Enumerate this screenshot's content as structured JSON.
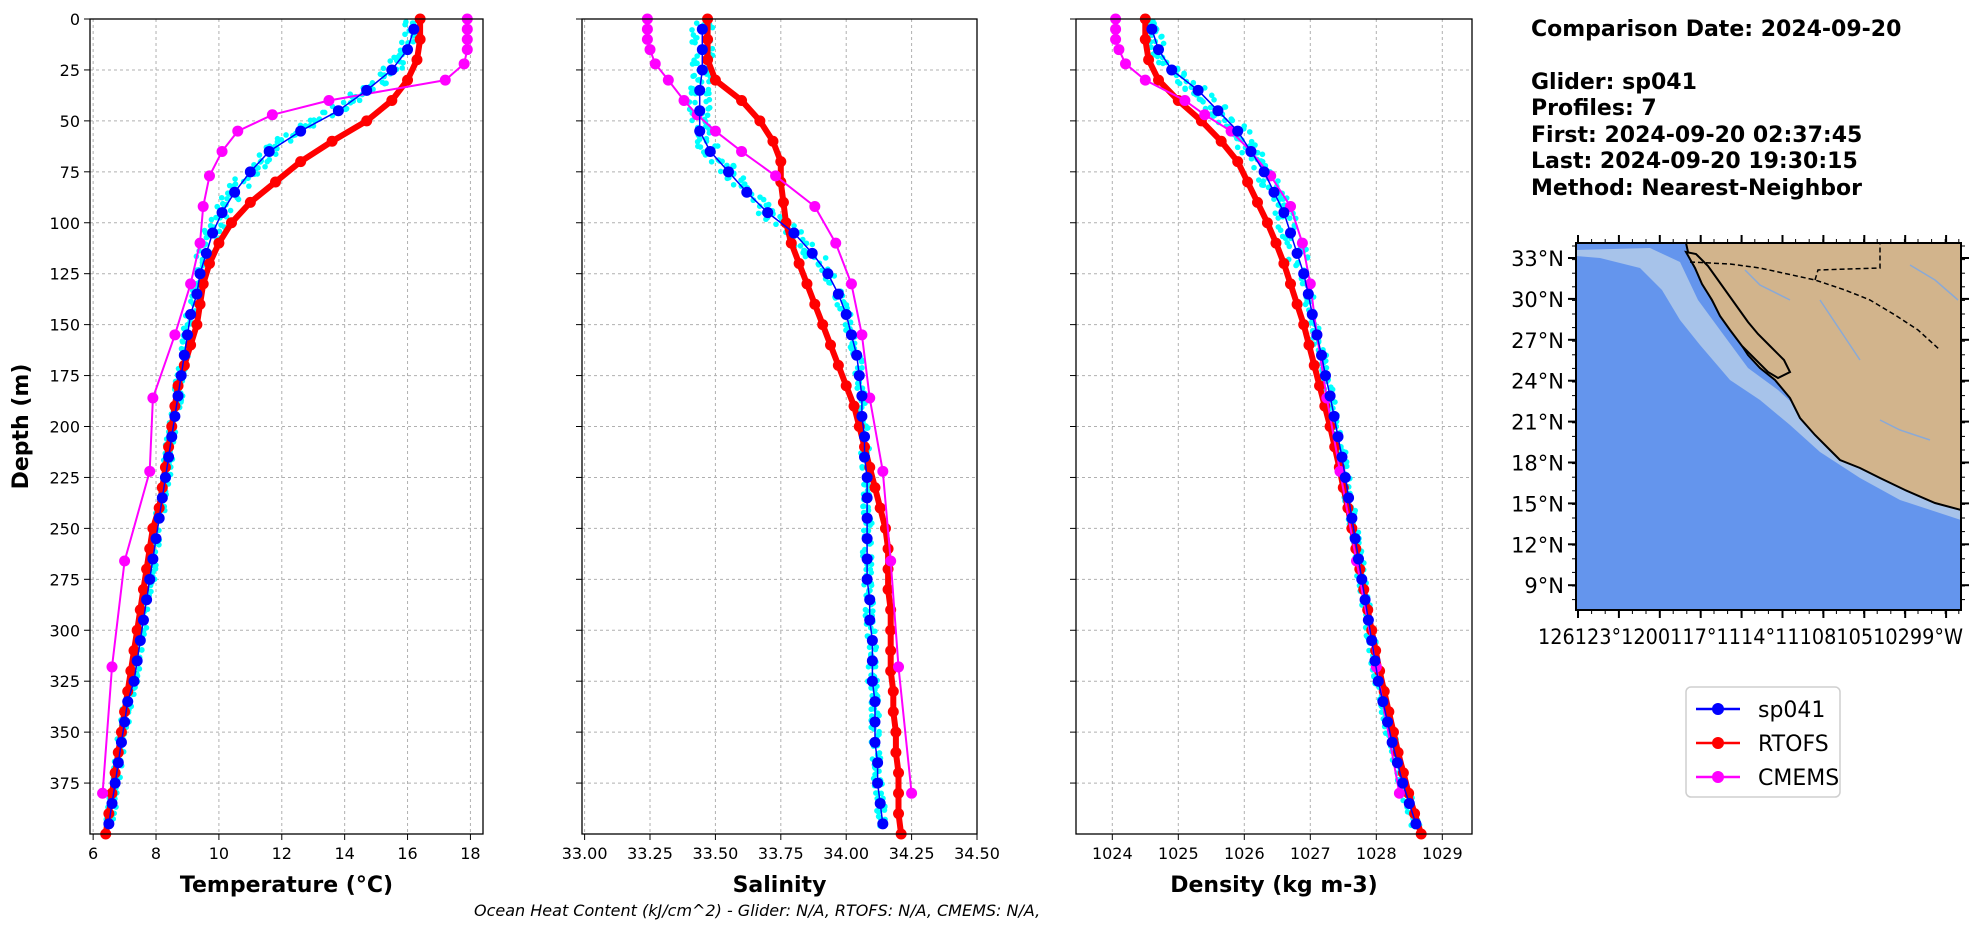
{
  "info": {
    "comparison_date": "Comparison Date: 2024-09-20",
    "glider": "Glider: sp041",
    "profiles": "Profiles: 7",
    "first": "First: 2024-09-20 02:37:45",
    "last": "Last: 2024-09-20 19:30:15",
    "method": "Method: Nearest-Neighbor"
  },
  "footer": "Ocean Heat Content (kJ/cm^2) - Glider: N/A,  RTOFS: N/A,  CMEMS: N/A,",
  "colors": {
    "sp041": "#0000ff",
    "rtofs": "#ff0000",
    "cmems": "#ff00ff",
    "raw": "#00ffff",
    "ocean": "#6495ed",
    "shelf": "#a7c3ea",
    "land": "#d2b48c"
  },
  "legend": [
    {
      "label": "sp041",
      "color": "#0000ff"
    },
    {
      "label": "RTOFS",
      "color": "#ff0000"
    },
    {
      "label": "CMEMS",
      "color": "#ff00ff"
    }
  ],
  "map": {
    "lat_labels": [
      "33°N",
      "30°N",
      "27°N",
      "24°N",
      "21°N",
      "18°N",
      "15°N",
      "12°N",
      "9°N"
    ],
    "lon_labels": [
      "126°W",
      "123°W",
      "120°W",
      "117°W",
      "114°W",
      "111°W",
      "108°W",
      "105°W",
      "102°W",
      "99°W"
    ],
    "lon_label_text": "126123°1200117°1114°1110810510299°W",
    "ocean_color": "#6495ed",
    "land_color": "#d2b48c"
  },
  "chart_data": [
    {
      "type": "line",
      "xlabel": "Temperature (°C)",
      "ylabel": "Depth (m)",
      "xlim": [
        5.9,
        18.4
      ],
      "ylim": [
        400,
        0
      ],
      "xticks": [
        6,
        8,
        10,
        12,
        14,
        16,
        18
      ],
      "yticks": [
        0,
        25,
        50,
        75,
        100,
        125,
        150,
        175,
        200,
        225,
        250,
        275,
        300,
        325,
        350,
        375
      ],
      "grid": true,
      "series": [
        {
          "name": "sp041",
          "depth": [
            5,
            15,
            25,
            35,
            45,
            55,
            65,
            75,
            85,
            95,
            105,
            115,
            125,
            135,
            145,
            155,
            165,
            175,
            185,
            195,
            205,
            215,
            225,
            235,
            245,
            255,
            265,
            275,
            285,
            295,
            305,
            315,
            325,
            335,
            345,
            355,
            365,
            375,
            385,
            395
          ],
          "values": [
            16.2,
            16.0,
            15.5,
            14.7,
            13.8,
            12.6,
            11.6,
            11.0,
            10.5,
            10.1,
            9.8,
            9.6,
            9.4,
            9.3,
            9.1,
            9.0,
            8.9,
            8.8,
            8.7,
            8.6,
            8.5,
            8.4,
            8.3,
            8.2,
            8.1,
            8.0,
            7.9,
            7.8,
            7.7,
            7.6,
            7.5,
            7.4,
            7.3,
            7.1,
            7.0,
            6.9,
            6.8,
            6.7,
            6.6,
            6.5
          ]
        },
        {
          "name": "RTOFS",
          "depth": [
            0,
            10,
            20,
            30,
            40,
            50,
            60,
            70,
            80,
            90,
            100,
            110,
            120,
            130,
            140,
            150,
            160,
            170,
            180,
            190,
            200,
            210,
            220,
            230,
            240,
            250,
            260,
            270,
            280,
            290,
            300,
            310,
            320,
            330,
            340,
            350,
            360,
            370,
            380,
            390,
            400
          ],
          "values": [
            16.4,
            16.4,
            16.3,
            16.0,
            15.5,
            14.7,
            13.6,
            12.6,
            11.8,
            11.0,
            10.4,
            10.0,
            9.7,
            9.5,
            9.4,
            9.3,
            9.1,
            8.9,
            8.7,
            8.6,
            8.5,
            8.4,
            8.3,
            8.2,
            8.1,
            7.9,
            7.8,
            7.7,
            7.6,
            7.5,
            7.4,
            7.3,
            7.2,
            7.1,
            7.0,
            6.9,
            6.8,
            6.7,
            6.6,
            6.5,
            6.4
          ]
        },
        {
          "name": "CMEMS",
          "depth": [
            0,
            5,
            10,
            15,
            22,
            30,
            40,
            47,
            55,
            65,
            77,
            92,
            110,
            130,
            155,
            186,
            222,
            266,
            318,
            380
          ],
          "values": [
            17.9,
            17.9,
            17.9,
            17.9,
            17.8,
            17.2,
            13.5,
            11.7,
            10.6,
            10.1,
            9.7,
            9.5,
            9.4,
            9.1,
            8.6,
            7.9,
            7.8,
            7.0,
            6.6,
            6.3
          ]
        }
      ]
    },
    {
      "type": "line",
      "xlabel": "Salinity",
      "xlim": [
        32.99,
        34.5
      ],
      "ylim": [
        400,
        0
      ],
      "xticks": [
        33.0,
        33.25,
        33.5,
        33.75,
        34.0,
        34.25,
        34.5
      ],
      "grid": true,
      "series": [
        {
          "name": "sp041",
          "depth": [
            5,
            15,
            25,
            35,
            45,
            55,
            65,
            75,
            85,
            95,
            105,
            115,
            125,
            135,
            145,
            155,
            165,
            175,
            185,
            195,
            205,
            215,
            225,
            235,
            245,
            255,
            265,
            275,
            285,
            295,
            305,
            315,
            325,
            335,
            345,
            355,
            365,
            375,
            385,
            395
          ],
          "values": [
            33.45,
            33.45,
            33.45,
            33.44,
            33.44,
            33.44,
            33.48,
            33.55,
            33.62,
            33.7,
            33.8,
            33.87,
            33.93,
            33.97,
            34.0,
            34.02,
            34.04,
            34.05,
            34.06,
            34.06,
            34.07,
            34.07,
            34.08,
            34.08,
            34.08,
            34.08,
            34.08,
            34.08,
            34.09,
            34.09,
            34.1,
            34.1,
            34.1,
            34.11,
            34.11,
            34.11,
            34.12,
            34.12,
            34.13,
            34.14
          ]
        },
        {
          "name": "RTOFS",
          "depth": [
            0,
            10,
            20,
            30,
            40,
            50,
            60,
            70,
            80,
            90,
            100,
            110,
            120,
            130,
            140,
            150,
            160,
            170,
            180,
            190,
            200,
            210,
            220,
            230,
            240,
            250,
            260,
            270,
            280,
            290,
            300,
            310,
            320,
            330,
            340,
            350,
            360,
            370,
            380,
            390,
            400
          ],
          "values": [
            33.47,
            33.47,
            33.47,
            33.5,
            33.6,
            33.67,
            33.72,
            33.75,
            33.75,
            33.76,
            33.77,
            33.79,
            33.82,
            33.85,
            33.88,
            33.91,
            33.94,
            33.97,
            34.0,
            34.03,
            34.05,
            34.07,
            34.09,
            34.11,
            34.13,
            34.15,
            34.16,
            34.16,
            34.16,
            34.17,
            34.17,
            34.17,
            34.17,
            34.18,
            34.18,
            34.19,
            34.19,
            34.2,
            34.2,
            34.2,
            34.21
          ]
        },
        {
          "name": "CMEMS",
          "depth": [
            0,
            5,
            10,
            15,
            22,
            30,
            40,
            47,
            55,
            65,
            77,
            92,
            110,
            130,
            155,
            186,
            222,
            266,
            318,
            380
          ],
          "values": [
            33.24,
            33.24,
            33.24,
            33.25,
            33.27,
            33.32,
            33.38,
            33.43,
            33.5,
            33.6,
            33.73,
            33.88,
            33.96,
            34.02,
            34.06,
            34.09,
            34.14,
            34.17,
            34.2,
            34.25
          ]
        }
      ]
    },
    {
      "type": "line",
      "xlabel": "Density (kg m-3)",
      "xlim": [
        1023.45,
        1029.45
      ],
      "ylim": [
        400,
        0
      ],
      "xticks": [
        1024,
        1025,
        1026,
        1027,
        1028,
        1029
      ],
      "grid": true,
      "series": [
        {
          "name": "sp041",
          "depth": [
            5,
            15,
            25,
            35,
            45,
            55,
            65,
            75,
            85,
            95,
            105,
            115,
            125,
            135,
            145,
            155,
            165,
            175,
            185,
            195,
            205,
            215,
            225,
            235,
            245,
            255,
            265,
            275,
            285,
            295,
            305,
            315,
            325,
            335,
            345,
            355,
            365,
            375,
            385,
            395
          ],
          "values": [
            1024.6,
            1024.7,
            1024.9,
            1025.3,
            1025.6,
            1025.9,
            1026.1,
            1026.3,
            1026.45,
            1026.6,
            1026.7,
            1026.8,
            1026.9,
            1026.97,
            1027.03,
            1027.1,
            1027.17,
            1027.23,
            1027.3,
            1027.36,
            1027.42,
            1027.48,
            1027.53,
            1027.58,
            1027.63,
            1027.68,
            1027.73,
            1027.78,
            1027.83,
            1027.88,
            1027.93,
            1027.98,
            1028.03,
            1028.1,
            1028.17,
            1028.24,
            1028.32,
            1028.4,
            1028.5,
            1028.6
          ]
        },
        {
          "name": "RTOFS",
          "depth": [
            0,
            10,
            20,
            30,
            40,
            50,
            60,
            70,
            80,
            90,
            100,
            110,
            120,
            130,
            140,
            150,
            160,
            170,
            180,
            190,
            200,
            210,
            220,
            230,
            240,
            250,
            260,
            270,
            280,
            290,
            300,
            310,
            320,
            330,
            340,
            350,
            360,
            370,
            380,
            390,
            400
          ],
          "values": [
            1024.5,
            1024.5,
            1024.55,
            1024.7,
            1025.0,
            1025.35,
            1025.65,
            1025.9,
            1026.05,
            1026.2,
            1026.35,
            1026.48,
            1026.6,
            1026.7,
            1026.8,
            1026.9,
            1026.98,
            1027.06,
            1027.14,
            1027.22,
            1027.3,
            1027.37,
            1027.44,
            1027.5,
            1027.57,
            1027.63,
            1027.69,
            1027.75,
            1027.81,
            1027.87,
            1027.93,
            1027.99,
            1028.05,
            1028.12,
            1028.19,
            1028.26,
            1028.33,
            1028.41,
            1028.49,
            1028.58,
            1028.68
          ]
        },
        {
          "name": "CMEMS",
          "depth": [
            0,
            5,
            10,
            15,
            22,
            30,
            40,
            47,
            55,
            65,
            77,
            92,
            110,
            130,
            155,
            186,
            222,
            266,
            318,
            380
          ],
          "values": [
            1024.05,
            1024.05,
            1024.05,
            1024.1,
            1024.2,
            1024.5,
            1025.1,
            1025.4,
            1025.8,
            1026.1,
            1026.4,
            1026.7,
            1026.88,
            1027.0,
            1027.1,
            1027.25,
            1027.45,
            1027.7,
            1028.0,
            1028.35
          ]
        }
      ]
    }
  ]
}
